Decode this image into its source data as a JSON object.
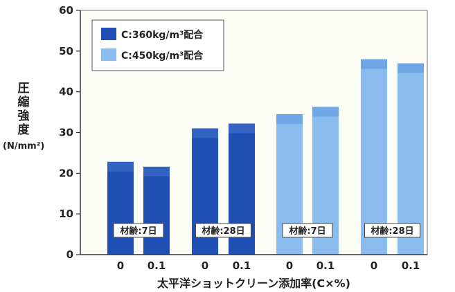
{
  "chart_data": {
    "type": "bar",
    "ylabel_lines": [
      "圧",
      "縮",
      "強",
      "度"
    ],
    "ylabel_unit": "(N/mm²)",
    "xlabel": "太平洋ショットクリーン添加率(C×%)",
    "ylim": [
      0,
      60
    ],
    "yticks": [
      "0",
      "10",
      "20",
      "30",
      "40",
      "50",
      "60"
    ],
    "grid": false,
    "legend_position": "top-left",
    "categories": [
      "0",
      "0.1",
      "0",
      "0.1",
      "0",
      "0.1",
      "0",
      "0.1"
    ],
    "groups": [
      {
        "label": "材齢:7日",
        "series": "C:360kg/m³配合"
      },
      {
        "label": "材齢:28日",
        "series": "C:360kg/m³配合"
      },
      {
        "label": "材齢:7日",
        "series": "C:450kg/m³配合"
      },
      {
        "label": "材齢:28日",
        "series": "C:450kg/m³配合"
      }
    ],
    "series": [
      {
        "name": "C:360kg/m³配合",
        "color": "#1f4fb4",
        "top_color": "#3563c2",
        "values": [
          22.8,
          21.6,
          31.0,
          32.2,
          null,
          null,
          null,
          null
        ]
      },
      {
        "name": "C:450kg/m³配合",
        "color": "#8bbcf0",
        "top_color": "#6fa6e6",
        "values": [
          null,
          null,
          null,
          null,
          34.5,
          36.3,
          48.0,
          47.0
        ]
      }
    ]
  }
}
